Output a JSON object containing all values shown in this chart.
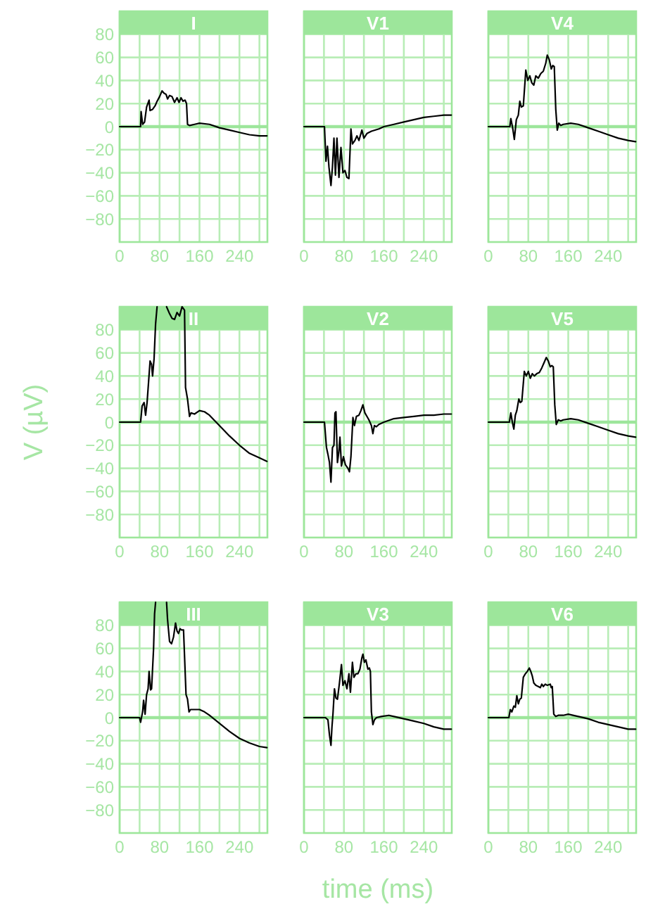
{
  "chart_data": [
    {
      "type": "line",
      "title": "I",
      "color": "#000000",
      "x": [
        0,
        42,
        43,
        46,
        50,
        54,
        59,
        61,
        66,
        71,
        75,
        80,
        85,
        89,
        93,
        96,
        100,
        105,
        110,
        115,
        119,
        123,
        127,
        131,
        134,
        136,
        140,
        150,
        160,
        180,
        200,
        220,
        240,
        260,
        280,
        295
      ],
      "values": [
        0,
        0,
        13,
        2,
        4,
        17,
        23,
        14,
        15,
        18,
        22,
        26,
        31,
        29,
        28,
        24,
        27,
        26,
        21,
        25,
        21,
        25,
        22,
        23,
        20,
        2,
        1,
        2,
        3,
        2,
        -1,
        -3,
        -5,
        -7,
        -8,
        -8
      ],
      "xlim": [
        0,
        296
      ],
      "ylim": [
        -100,
        100
      ],
      "xticks": [
        0,
        {
          "value": 40,
          "label": null
        },
        80,
        {
          "value": 120,
          "label": null
        },
        160,
        {
          "value": 200,
          "label": null
        },
        240,
        {
          "value": 280,
          "label": null
        }
      ],
      "yticks": [
        -80,
        -60,
        -40,
        -20,
        0,
        20,
        40,
        60,
        80
      ],
      "grid": true,
      "ref_lines": [
        {
          "axis": "y",
          "value": 0,
          "color": "#9de69b"
        }
      ]
    },
    {
      "type": "line",
      "title": "V1",
      "color": "#000000",
      "x": [
        0,
        41,
        44,
        47,
        50,
        54,
        57,
        60,
        63,
        66,
        70,
        74,
        78,
        82,
        86,
        90,
        94,
        97,
        102,
        106,
        110,
        116,
        120,
        126,
        135,
        150,
        160,
        180,
        200,
        220,
        240,
        260,
        280,
        295
      ],
      "values": [
        0,
        0,
        -30,
        -17,
        -35,
        -51,
        -35,
        -10,
        -42,
        -10,
        -44,
        -18,
        -40,
        -38,
        -44,
        -45,
        -2,
        -15,
        -12,
        -8,
        -12,
        -3,
        -10,
        -6,
        -4,
        -2,
        0,
        2,
        4,
        6,
        8,
        9,
        10,
        10
      ],
      "xlim": [
        0,
        296
      ],
      "ylim": [
        -100,
        100
      ],
      "xticks": [
        0,
        {
          "value": 40,
          "label": null
        },
        80,
        {
          "value": 120,
          "label": null
        },
        160,
        {
          "value": 200,
          "label": null
        },
        240,
        {
          "value": 280,
          "label": null
        }
      ],
      "yticks": [
        -80,
        -60,
        -40,
        -20,
        0,
        20,
        40,
        60,
        80
      ],
      "grid": true,
      "ref_lines": [
        {
          "axis": "y",
          "value": 0,
          "color": "#9de69b"
        }
      ],
      "tick_labels": "x"
    },
    {
      "type": "line",
      "title": "V4",
      "color": "#000000",
      "x": [
        0,
        43,
        45,
        49,
        52,
        56,
        60,
        63,
        66,
        70,
        75,
        79,
        83,
        87,
        91,
        95,
        100,
        105,
        110,
        115,
        118,
        122,
        126,
        129,
        132,
        135,
        138,
        141,
        145,
        150,
        165,
        180,
        200,
        220,
        240,
        260,
        280,
        295
      ],
      "values": [
        0,
        0,
        7,
        -2,
        -11,
        6,
        10,
        22,
        17,
        18,
        49,
        40,
        44,
        38,
        36,
        44,
        42,
        46,
        48,
        55,
        62,
        58,
        50,
        53,
        52,
        15,
        -3,
        3,
        1,
        2,
        3,
        2,
        -1,
        -4,
        -7,
        -10,
        -12,
        -13
      ],
      "xlim": [
        0,
        296
      ],
      "ylim": [
        -100,
        100
      ],
      "xticks": [
        0,
        {
          "value": 40,
          "label": null
        },
        80,
        {
          "value": 120,
          "label": null
        },
        160,
        {
          "value": 200,
          "label": null
        },
        240,
        {
          "value": 280,
          "label": null
        }
      ],
      "yticks": [
        -80,
        -60,
        -40,
        -20,
        0,
        20,
        40,
        60,
        80
      ],
      "grid": true,
      "ref_lines": [
        {
          "axis": "y",
          "value": 0,
          "color": "#9de69b"
        }
      ],
      "tick_labels": "x"
    },
    {
      "type": "line",
      "title": "II",
      "ylabel": "V (µV)",
      "color": "#000000",
      "x": [
        0,
        42,
        45,
        49,
        52,
        55,
        58,
        61,
        64,
        66,
        69,
        72,
        75,
        85,
        94,
        100,
        105,
        110,
        115,
        120,
        125,
        130,
        132,
        136,
        140,
        143,
        150,
        160,
        170,
        180,
        200,
        220,
        240,
        260,
        280,
        295
      ],
      "values": [
        0,
        0,
        14,
        17,
        6,
        17,
        35,
        53,
        50,
        40,
        55,
        85,
        100,
        null,
        100,
        94,
        90,
        89,
        95,
        92,
        100,
        97,
        30,
        20,
        5,
        8,
        7,
        10,
        9,
        6,
        -3,
        -12,
        -20,
        -27,
        -31,
        -34
      ],
      "xlim": [
        0,
        296
      ],
      "ylim": [
        -100,
        100
      ],
      "xticks": [
        0,
        {
          "value": 40,
          "label": null
        },
        80,
        {
          "value": 120,
          "label": null
        },
        160,
        {
          "value": 200,
          "label": null
        },
        240,
        {
          "value": 280,
          "label": null
        }
      ],
      "yticks": [
        -80,
        -60,
        -40,
        -20,
        0,
        20,
        40,
        60,
        80
      ],
      "grid": true,
      "ref_lines": [
        {
          "axis": "y",
          "value": 0,
          "color": "#9de69b"
        }
      ]
    },
    {
      "type": "line",
      "title": "V2",
      "color": "#000000",
      "x": [
        0,
        41,
        45,
        48,
        51,
        54,
        57,
        60,
        62,
        64,
        67,
        70,
        72,
        75,
        79,
        83,
        88,
        91,
        94,
        98,
        101,
        105,
        110,
        114,
        118,
        122,
        126,
        130,
        135,
        138,
        141,
        145,
        150,
        160,
        180,
        200,
        220,
        240,
        260,
        280,
        295
      ],
      "values": [
        0,
        0,
        -22,
        -28,
        -35,
        -52,
        -22,
        -20,
        8,
        9,
        -35,
        -25,
        -13,
        -38,
        -30,
        -37,
        -40,
        -43,
        -30,
        4,
        -3,
        5,
        6,
        10,
        15,
        8,
        5,
        2,
        -3,
        -10,
        -3,
        -4,
        -2,
        0,
        3,
        4,
        5,
        6,
        6,
        7,
        7
      ],
      "xlim": [
        0,
        296
      ],
      "ylim": [
        -100,
        100
      ],
      "xticks": [
        0,
        {
          "value": 40,
          "label": null
        },
        80,
        {
          "value": 120,
          "label": null
        },
        160,
        {
          "value": 200,
          "label": null
        },
        240,
        {
          "value": 280,
          "label": null
        }
      ],
      "yticks": [
        -80,
        -60,
        -40,
        -20,
        0,
        20,
        40,
        60,
        80
      ],
      "grid": true,
      "ref_lines": [
        {
          "axis": "y",
          "value": 0,
          "color": "#9de69b"
        }
      ],
      "tick_labels": "x"
    },
    {
      "type": "line",
      "title": "V5",
      "color": "#000000",
      "x": [
        0,
        42,
        45,
        48,
        51,
        54,
        57,
        61,
        64,
        67,
        72,
        76,
        80,
        84,
        88,
        92,
        97,
        102,
        107,
        112,
        116,
        120,
        124,
        127,
        130,
        133,
        136,
        140,
        145,
        150,
        165,
        180,
        200,
        220,
        240,
        260,
        280,
        295
      ],
      "values": [
        0,
        0,
        8,
        0,
        -6,
        6,
        10,
        20,
        17,
        18,
        44,
        40,
        44,
        38,
        42,
        40,
        42,
        43,
        47,
        52,
        56,
        53,
        48,
        49,
        48,
        15,
        -2,
        2,
        1,
        2,
        3,
        2,
        -1,
        -4,
        -7,
        -10,
        -12,
        -13
      ],
      "xlim": [
        0,
        296
      ],
      "ylim": [
        -100,
        100
      ],
      "xticks": [
        0,
        {
          "value": 40,
          "label": null
        },
        80,
        {
          "value": 120,
          "label": null
        },
        160,
        {
          "value": 200,
          "label": null
        },
        240,
        {
          "value": 280,
          "label": null
        }
      ],
      "yticks": [
        -80,
        -60,
        -40,
        -20,
        0,
        20,
        40,
        60,
        80
      ],
      "grid": true,
      "ref_lines": [
        {
          "axis": "y",
          "value": 0,
          "color": "#9de69b"
        }
      ],
      "tick_labels": "x"
    },
    {
      "type": "line",
      "title": "III",
      "color": "#000000",
      "x": [
        0,
        40,
        42,
        46,
        48,
        51,
        54,
        57,
        59,
        62,
        64,
        68,
        70,
        72,
        85,
        94,
        96,
        100,
        104,
        108,
        112,
        115,
        118,
        121,
        124,
        128,
        133,
        136,
        139,
        142,
        150,
        160,
        170,
        180,
        200,
        220,
        240,
        260,
        280,
        295
      ],
      "values": [
        0,
        0,
        -4,
        5,
        15,
        3,
        20,
        25,
        40,
        24,
        25,
        60,
        90,
        100,
        null,
        100,
        85,
        66,
        64,
        70,
        82,
        75,
        73,
        77,
        76,
        76,
        20,
        16,
        5,
        7,
        7,
        7,
        5,
        2,
        -5,
        -12,
        -18,
        -22,
        -25,
        -26
      ],
      "xlim": [
        0,
        296
      ],
      "ylim": [
        -100,
        100
      ],
      "xticks": [
        0,
        {
          "value": 40,
          "label": null
        },
        80,
        {
          "value": 120,
          "label": null
        },
        160,
        {
          "value": 200,
          "label": null
        },
        240,
        {
          "value": 280,
          "label": null
        }
      ],
      "yticks": [
        -80,
        -60,
        -40,
        -20,
        0,
        20,
        40,
        60,
        80
      ],
      "grid": true,
      "ref_lines": [
        {
          "axis": "y",
          "value": 0,
          "color": "#9de69b"
        }
      ]
    },
    {
      "type": "line",
      "title": "V3",
      "xlabel": "time (ms)",
      "color": "#000000",
      "x": [
        0,
        43,
        48,
        51,
        54,
        56,
        58,
        61,
        64,
        67,
        71,
        75,
        78,
        82,
        86,
        90,
        93,
        97,
        100,
        104,
        108,
        112,
        116,
        118,
        121,
        124,
        128,
        131,
        133,
        135,
        138,
        141,
        145,
        155,
        170,
        180,
        200,
        220,
        240,
        260,
        280,
        295
      ],
      "values": [
        0,
        0,
        -2,
        -15,
        -24,
        -8,
        3,
        25,
        17,
        16,
        30,
        46,
        28,
        32,
        25,
        38,
        22,
        48,
        35,
        38,
        38,
        42,
        52,
        55,
        48,
        50,
        42,
        43,
        40,
        5,
        -6,
        -2,
        0,
        1,
        2,
        1,
        -1,
        -3,
        -5,
        -8,
        -10,
        -10
      ],
      "xlim": [
        0,
        296
      ],
      "ylim": [
        -100,
        100
      ],
      "xticks": [
        0,
        {
          "value": 40,
          "label": null
        },
        80,
        {
          "value": 120,
          "label": null
        },
        160,
        {
          "value": 200,
          "label": null
        },
        240,
        {
          "value": 280,
          "label": null
        }
      ],
      "yticks": [
        -80,
        -60,
        -40,
        -20,
        0,
        20,
        40,
        60,
        80
      ],
      "grid": true,
      "ref_lines": [
        {
          "axis": "y",
          "value": 0,
          "color": "#9de69b"
        }
      ],
      "tick_labels": "x"
    },
    {
      "type": "line",
      "title": "V6",
      "color": "#000000",
      "x": [
        0,
        41,
        44,
        47,
        51,
        54,
        57,
        60,
        63,
        66,
        70,
        74,
        78,
        82,
        85,
        88,
        91,
        95,
        100,
        104,
        107,
        110,
        114,
        118,
        124,
        126,
        128,
        131,
        135,
        140,
        150,
        160,
        180,
        200,
        220,
        240,
        260,
        280,
        295
      ],
      "values": [
        0,
        0,
        7,
        5,
        10,
        9,
        19,
        12,
        16,
        17,
        35,
        38,
        40,
        43,
        40,
        36,
        30,
        28,
        27,
        26,
        29,
        27,
        29,
        28,
        29,
        26,
        27,
        3,
        1,
        2,
        2,
        3,
        1,
        -1,
        -4,
        -6,
        -8,
        -10,
        -10
      ],
      "xlim": [
        0,
        296
      ],
      "ylim": [
        -100,
        100
      ],
      "xticks": [
        0,
        {
          "value": 40,
          "label": null
        },
        80,
        {
          "value": 120,
          "label": null
        },
        160,
        {
          "value": 200,
          "label": null
        },
        240,
        {
          "value": 280,
          "label": null
        }
      ],
      "yticks": [
        -80,
        -60,
        -40,
        -20,
        0,
        20,
        40,
        60,
        80
      ],
      "grid": true,
      "ref_lines": [
        {
          "axis": "y",
          "value": 0,
          "color": "#9de69b"
        }
      ],
      "tick_labels": "x"
    }
  ]
}
